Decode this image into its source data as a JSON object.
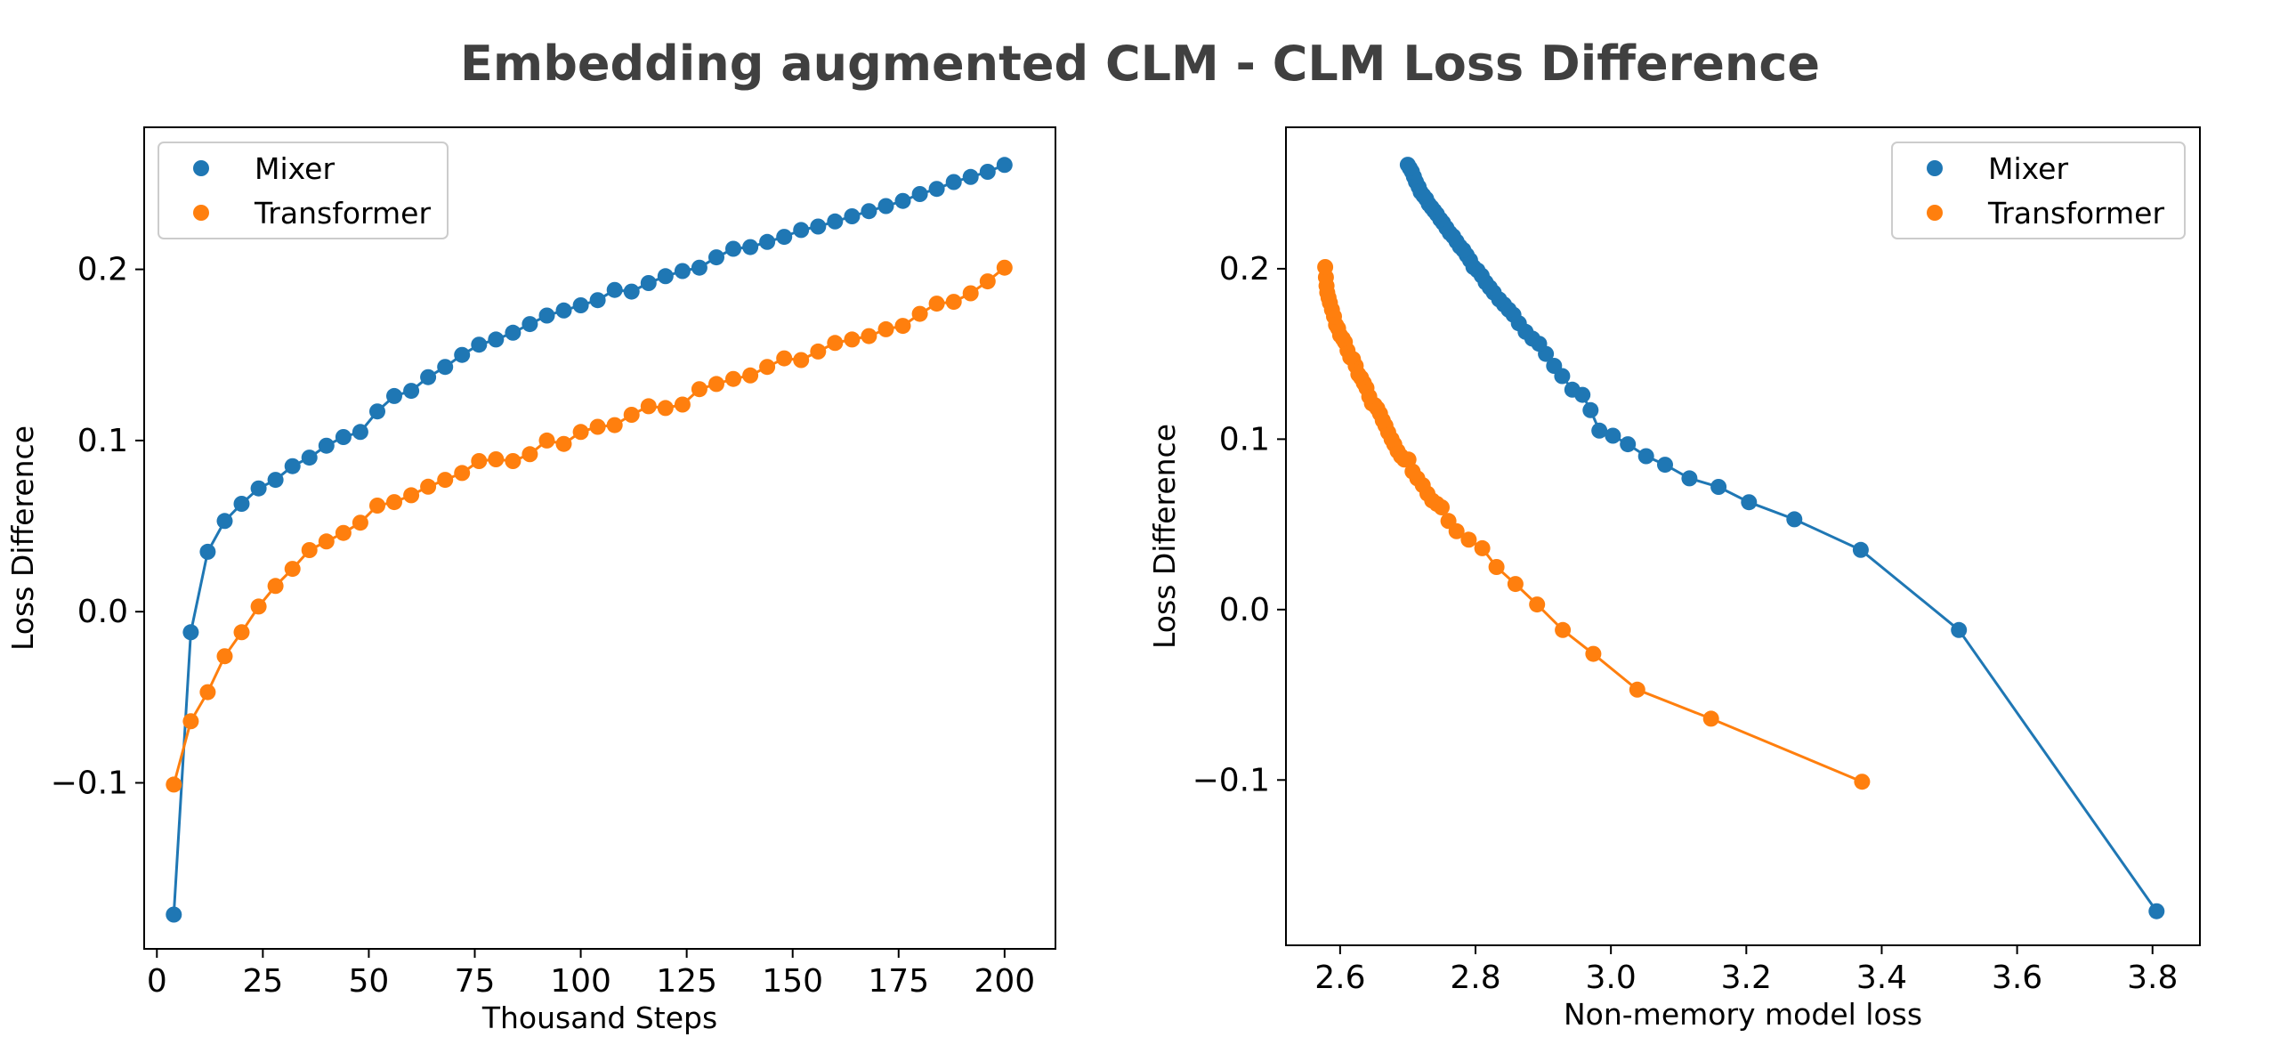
{
  "figure": {
    "title": "Embedding augmented CLM - CLM Loss Difference"
  },
  "colors": {
    "Mixer": "#1f77b4",
    "Transformer": "#ff7f0e",
    "title": "#404040"
  },
  "chart_data": [
    {
      "type": "line",
      "title": "",
      "xlabel": "Thousand Steps",
      "ylabel": "Loss Difference",
      "xlim": [
        -3,
        212
      ],
      "ylim": [
        -0.197,
        0.283
      ],
      "xticks": [
        0,
        25,
        50,
        75,
        100,
        125,
        150,
        175,
        200
      ],
      "xtick_labels": [
        "0",
        "25",
        "50",
        "75",
        "100",
        "125",
        "150",
        "175",
        "200"
      ],
      "yticks": [
        -0.1,
        0.0,
        0.1,
        0.2
      ],
      "ytick_labels": [
        "−0.1",
        "0.0",
        "0.1",
        "0.2"
      ],
      "legend": "top-left",
      "grid": false,
      "series": [
        {
          "name": "Mixer",
          "x": [
            4,
            8,
            12,
            16,
            20,
            24,
            28,
            32,
            36,
            40,
            44,
            48,
            52,
            56,
            60,
            64,
            68,
            72,
            76,
            80,
            84,
            88,
            92,
            96,
            100,
            104,
            108,
            112,
            116,
            120,
            124,
            128,
            132,
            136,
            140,
            144,
            148,
            152,
            156,
            160,
            164,
            168,
            172,
            176,
            180,
            184,
            188,
            192,
            196,
            200
          ],
          "y": [
            -0.177,
            -0.012,
            0.035,
            0.053,
            0.063,
            0.072,
            0.077,
            0.085,
            0.09,
            0.097,
            0.102,
            0.105,
            0.117,
            0.126,
            0.129,
            0.137,
            0.143,
            0.15,
            0.156,
            0.159,
            0.163,
            0.168,
            0.173,
            0.176,
            0.179,
            0.182,
            0.188,
            0.187,
            0.192,
            0.196,
            0.199,
            0.201,
            0.207,
            0.212,
            0.213,
            0.216,
            0.219,
            0.223,
            0.225,
            0.228,
            0.231,
            0.234,
            0.237,
            0.24,
            0.244,
            0.247,
            0.251,
            0.254,
            0.257,
            0.261
          ]
        },
        {
          "name": "Transformer",
          "x": [
            4,
            8,
            12,
            16,
            20,
            24,
            28,
            32,
            36,
            40,
            44,
            48,
            52,
            56,
            60,
            64,
            68,
            72,
            76,
            80,
            84,
            88,
            92,
            96,
            100,
            104,
            108,
            112,
            116,
            120,
            124,
            128,
            132,
            136,
            140,
            144,
            148,
            152,
            156,
            160,
            164,
            168,
            172,
            176,
            180,
            184,
            188,
            192,
            196,
            200
          ],
          "y": [
            -0.101,
            -0.064,
            -0.047,
            -0.026,
            -0.012,
            0.003,
            0.015,
            0.025,
            0.036,
            0.041,
            0.046,
            0.052,
            0.062,
            0.064,
            0.068,
            0.073,
            0.077,
            0.081,
            0.088,
            0.089,
            0.088,
            0.092,
            0.1,
            0.098,
            0.105,
            0.108,
            0.109,
            0.115,
            0.12,
            0.119,
            0.121,
            0.13,
            0.133,
            0.136,
            0.138,
            0.143,
            0.148,
            0.147,
            0.152,
            0.157,
            0.159,
            0.161,
            0.165,
            0.167,
            0.174,
            0.18,
            0.181,
            0.186,
            0.193,
            0.201
          ]
        }
      ]
    },
    {
      "type": "line",
      "title": "",
      "xlabel": "Non-memory model loss",
      "ylabel": "Loss Difference",
      "xlim": [
        2.52,
        3.87
      ],
      "ylim": [
        -0.197,
        0.283
      ],
      "xticks": [
        2.6,
        2.8,
        3.0,
        3.2,
        3.4,
        3.6,
        3.8
      ],
      "xtick_labels": [
        "2.6",
        "2.8",
        "3.0",
        "3.2",
        "3.4",
        "3.6",
        "3.8"
      ],
      "yticks": [
        -0.1,
        0.0,
        0.1,
        0.2
      ],
      "ytick_labels": [
        "−0.1",
        "0.0",
        "0.1",
        "0.2"
      ],
      "legend": "top-right",
      "grid": false,
      "series": [
        {
          "name": "Mixer",
          "x": [
            3.806,
            3.514,
            3.369,
            3.271,
            3.204,
            3.159,
            3.116,
            3.08,
            3.052,
            3.025,
            3.003,
            2.983,
            2.97,
            2.958,
            2.943,
            2.928,
            2.916,
            2.904,
            2.894,
            2.884,
            2.874,
            2.864,
            2.856,
            2.849,
            2.842,
            2.835,
            2.827,
            2.821,
            2.815,
            2.809,
            2.803,
            2.797,
            2.792,
            2.787,
            2.782,
            2.777,
            2.772,
            2.767,
            2.762,
            2.757,
            2.752,
            2.748,
            2.743,
            2.739,
            2.735,
            2.731,
            2.727,
            2.723,
            2.719,
            2.716,
            2.712,
            2.709,
            2.706,
            2.703,
            2.7
          ],
          "y": [
            -0.177,
            -0.012,
            0.035,
            0.053,
            0.063,
            0.072,
            0.077,
            0.085,
            0.09,
            0.097,
            0.102,
            0.105,
            0.117,
            0.126,
            0.129,
            0.137,
            0.143,
            0.15,
            0.156,
            0.159,
            0.163,
            0.168,
            0.173,
            0.176,
            0.179,
            0.182,
            0.186,
            0.189,
            0.192,
            0.196,
            0.199,
            0.201,
            0.205,
            0.208,
            0.211,
            0.213,
            0.216,
            0.219,
            0.221,
            0.224,
            0.227,
            0.229,
            0.232,
            0.234,
            0.236,
            0.238,
            0.241,
            0.243,
            0.245,
            0.248,
            0.251,
            0.254,
            0.257,
            0.259,
            0.261
          ]
        },
        {
          "name": "Transformer",
          "x": [
            3.371,
            3.148,
            3.039,
            2.974,
            2.929,
            2.891,
            2.859,
            2.831,
            2.81,
            2.79,
            2.772,
            2.76,
            2.75,
            2.743,
            2.736,
            2.729,
            2.722,
            2.714,
            2.707,
            2.701,
            2.695,
            2.69,
            2.685,
            2.68,
            2.676,
            2.671,
            2.667,
            2.663,
            2.659,
            2.655,
            2.651,
            2.647,
            2.643,
            2.639,
            2.635,
            2.631,
            2.627,
            2.623,
            2.619,
            2.615,
            2.611,
            2.607,
            2.604,
            2.6,
            2.597,
            2.594,
            2.591,
            2.588,
            2.585,
            2.583,
            2.581,
            2.58,
            2.579,
            2.578
          ],
          "y": [
            -0.101,
            -0.064,
            -0.047,
            -0.026,
            -0.012,
            0.003,
            0.015,
            0.025,
            0.036,
            0.041,
            0.046,
            0.052,
            0.06,
            0.062,
            0.064,
            0.068,
            0.073,
            0.077,
            0.081,
            0.088,
            0.088,
            0.09,
            0.093,
            0.097,
            0.1,
            0.104,
            0.108,
            0.111,
            0.115,
            0.118,
            0.12,
            0.121,
            0.125,
            0.13,
            0.133,
            0.136,
            0.138,
            0.143,
            0.147,
            0.148,
            0.152,
            0.157,
            0.159,
            0.161,
            0.165,
            0.167,
            0.172,
            0.176,
            0.18,
            0.183,
            0.186,
            0.19,
            0.195,
            0.201
          ]
        }
      ]
    }
  ]
}
